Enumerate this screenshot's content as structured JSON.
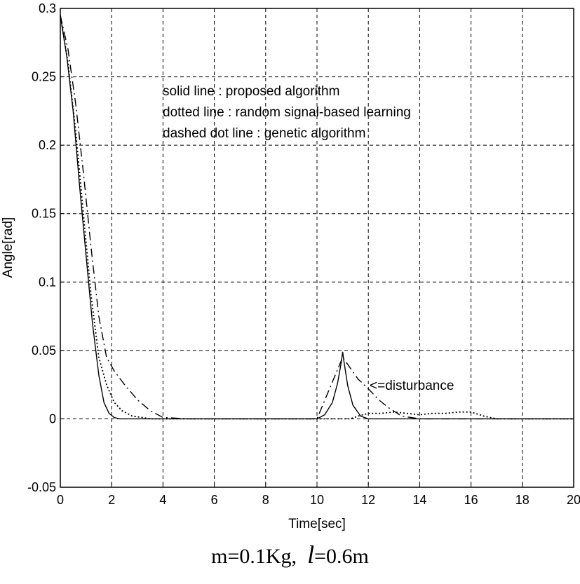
{
  "chart_data": {
    "type": "line",
    "title": "",
    "xlabel": "Time[sec]",
    "ylabel": "Angle[rad]",
    "xlim": [
      0,
      20
    ],
    "ylim": [
      -0.05,
      0.3
    ],
    "xticks": [
      0,
      2,
      4,
      6,
      8,
      10,
      12,
      14,
      16,
      18,
      20
    ],
    "yticks": [
      -0.05,
      0,
      0.05,
      0.1,
      0.15,
      0.2,
      0.25,
      0.3
    ],
    "xtick_labels": [
      "0",
      "2",
      "4",
      "6",
      "8",
      "10",
      "12",
      "14",
      "16",
      "18",
      "20"
    ],
    "ytick_labels": [
      "-0.05",
      "0",
      "0.05",
      "0.1",
      "0.15",
      "0.2",
      "0.25",
      "0.3"
    ],
    "grid": true,
    "grid_style": "dashed",
    "legend_text": [
      "solid line : proposed algorithm",
      "dotted line : random signal-based learning",
      "dashed dot line : genetic algorithm"
    ],
    "annotation": "<=disturbance",
    "series": [
      {
        "style": "solid",
        "x": [
          0,
          0.25,
          0.5,
          0.75,
          1.0,
          1.25,
          1.5,
          1.7,
          1.9,
          2.1,
          2.3,
          3,
          5,
          8,
          10,
          10.3,
          10.6,
          10.8,
          10.95,
          11.0,
          11.05,
          11.2,
          11.4,
          11.7,
          12,
          14,
          20
        ],
        "y": [
          0.295,
          0.265,
          0.225,
          0.17,
          0.12,
          0.07,
          0.032,
          0.012,
          0.004,
          0.001,
          0,
          0,
          0,
          0,
          0,
          0.003,
          0.012,
          0.026,
          0.042,
          0.049,
          0.042,
          0.024,
          0.01,
          0.002,
          0,
          0,
          0
        ]
      },
      {
        "style": "dotted",
        "x": [
          0,
          0.3,
          0.6,
          0.9,
          1.2,
          1.5,
          1.8,
          2.1,
          2.4,
          2.8,
          3.2,
          3.5,
          5,
          10,
          11.0,
          11.3,
          11.6,
          12,
          12.5,
          13,
          13.5,
          14,
          14.5,
          15,
          15.5,
          16,
          16.5,
          17,
          20
        ],
        "y": [
          0.295,
          0.26,
          0.21,
          0.15,
          0.09,
          0.045,
          0.025,
          0.012,
          0.006,
          0.002,
          0.001,
          0,
          0,
          0,
          0,
          0,
          0.002,
          0.004,
          0.004,
          0.005,
          0.004,
          0.003,
          0.004,
          0.004,
          0.005,
          0.005,
          0.002,
          0,
          0
        ]
      },
      {
        "style": "dashdot",
        "x": [
          0,
          0.3,
          0.6,
          0.9,
          1.2,
          1.5,
          1.8,
          2.1,
          2.5,
          3.0,
          3.5,
          4.0,
          5,
          10,
          11.0,
          11.3,
          11.6,
          12.0,
          12.4,
          12.8,
          13.3,
          14,
          20
        ],
        "y": [
          0.295,
          0.27,
          0.23,
          0.18,
          0.125,
          0.075,
          0.045,
          0.035,
          0.025,
          0.014,
          0.006,
          0.001,
          0,
          0,
          0.045,
          0.037,
          0.029,
          0.022,
          0.014,
          0.008,
          0.002,
          0,
          0
        ]
      }
    ]
  },
  "caption": {
    "part1": "m=0.1Kg,",
    "ell": "l",
    "part2": "=0.6m"
  }
}
